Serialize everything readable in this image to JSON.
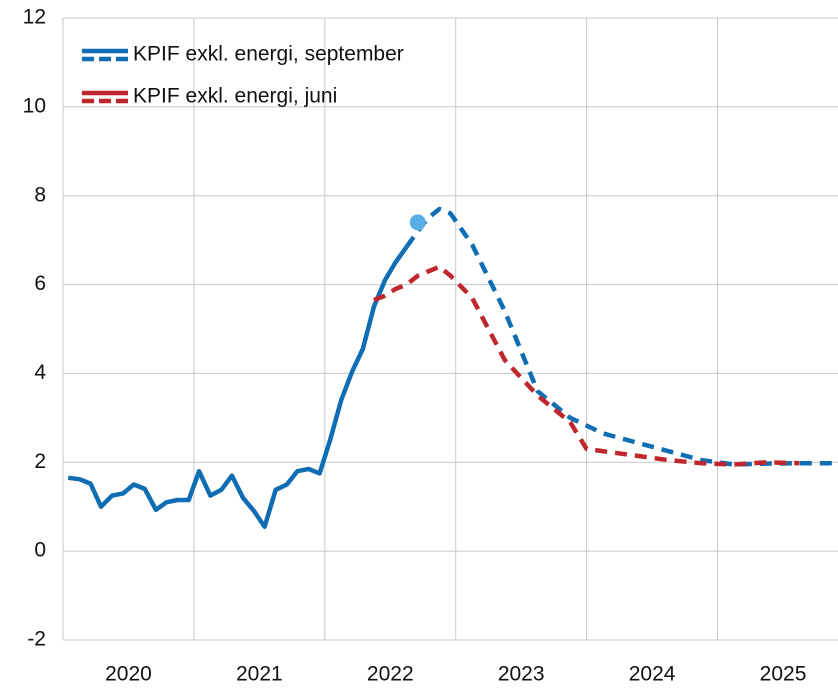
{
  "chart_data": {
    "type": "line",
    "series": [
      {
        "name": "KPIF exkl. energi, september",
        "color": "#0f6db3",
        "x": [
          2020.04,
          2020.125,
          2020.21,
          2020.29,
          2020.375,
          2020.46,
          2020.54,
          2020.625,
          2020.71,
          2020.79,
          2020.875,
          2020.96,
          2021.04,
          2021.125,
          2021.21,
          2021.29,
          2021.375,
          2021.46,
          2021.54,
          2021.625,
          2021.71,
          2021.79,
          2021.875,
          2021.96,
          2022.04,
          2022.125,
          2022.21,
          2022.29,
          2022.375,
          2022.46,
          2022.54,
          2022.625
        ],
        "values": [
          1.65,
          1.62,
          1.52,
          1.0,
          1.25,
          1.3,
          1.5,
          1.4,
          0.93,
          1.1,
          1.15,
          1.15,
          1.8,
          1.25,
          1.38,
          1.7,
          1.2,
          0.9,
          0.55,
          1.38,
          1.5,
          1.8,
          1.85,
          1.75,
          2.5,
          3.4,
          4.05,
          4.55,
          5.5,
          6.1,
          6.5,
          6.85
        ],
        "forecast_x": [
          2022.625,
          2022.71,
          2022.79,
          2022.875,
          2022.96,
          2023.125,
          2023.375,
          2023.625,
          2023.875,
          2024.125,
          2024.375,
          2024.625,
          2024.875,
          2025.125,
          2025.375,
          2025.625,
          2025.875
        ],
        "forecast_values": [
          6.85,
          7.2,
          7.5,
          7.7,
          7.6,
          6.9,
          5.4,
          3.6,
          3.0,
          2.65,
          2.45,
          2.25,
          2.05,
          1.95,
          1.97,
          1.98,
          1.98
        ]
      },
      {
        "name": "KPIF exkl. energi, juni",
        "color": "#c0272d",
        "forecast_x": [
          2022.375,
          2022.46,
          2022.54,
          2022.625,
          2022.71,
          2022.875,
          2022.96,
          2023.125,
          2023.375,
          2023.625,
          2023.875,
          2024.0,
          2024.375,
          2024.625,
          2024.875,
          2025.125,
          2025.375,
          2025.625
        ],
        "forecast_values": [
          5.65,
          5.75,
          5.9,
          6.0,
          6.2,
          6.4,
          6.2,
          5.7,
          4.3,
          3.5,
          2.9,
          2.3,
          2.15,
          2.05,
          1.98,
          1.95,
          2.0,
          1.98
        ]
      }
    ],
    "marker": {
      "x": 2022.71,
      "value": 7.4,
      "color": "#5aaee6"
    },
    "xlim": [
      2020,
      2025.92
    ],
    "xgrid": [
      2021,
      2022,
      2023,
      2024,
      2025
    ],
    "xticks": [
      {
        "value": 2020.5,
        "label": "2020"
      },
      {
        "value": 2021.5,
        "label": "2021"
      },
      {
        "value": 2022.5,
        "label": "2022"
      },
      {
        "value": 2023.5,
        "label": "2023"
      },
      {
        "value": 2024.5,
        "label": "2024"
      },
      {
        "value": 2025.5,
        "label": "2025"
      }
    ],
    "ylim": [
      -2,
      12
    ],
    "yticks": [
      -2,
      0,
      2,
      4,
      6,
      8,
      10,
      12
    ],
    "grid": true,
    "legend": "top-left"
  }
}
